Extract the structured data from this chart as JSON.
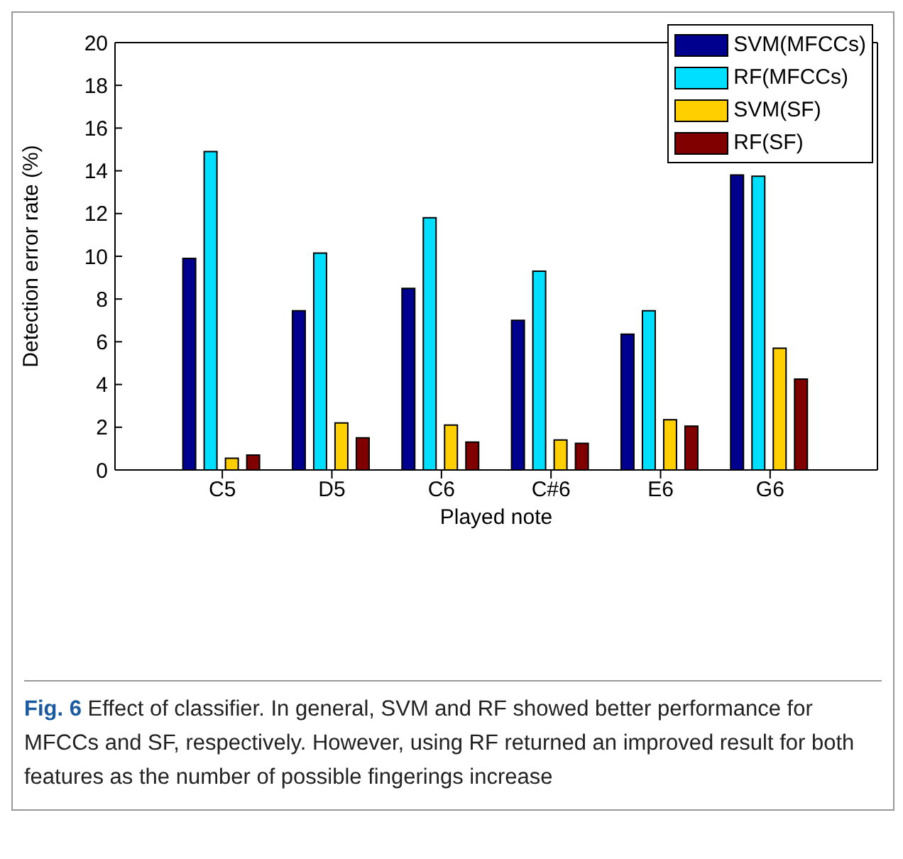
{
  "chart_data": {
    "type": "bar",
    "xlabel": "Played note",
    "ylabel": "Detection error rate (%)",
    "categories": [
      "C5",
      "D5",
      "C6",
      "C#6",
      "E6",
      "G6"
    ],
    "series": [
      {
        "name": "SVM(MFCCs)",
        "color": "#00008f",
        "values": [
          9.9,
          7.45,
          8.5,
          7.0,
          6.35,
          13.8
        ]
      },
      {
        "name": "RF(MFCCs)",
        "color": "#00dfff",
        "values": [
          14.9,
          10.15,
          11.8,
          9.3,
          7.45,
          13.75
        ]
      },
      {
        "name": "SVM(SF)",
        "color": "#ffcf00",
        "values": [
          0.55,
          2.2,
          2.1,
          1.4,
          2.35,
          5.7
        ]
      },
      {
        "name": "RF(SF)",
        "color": "#800000",
        "values": [
          0.7,
          1.5,
          1.3,
          1.25,
          2.05,
          4.25
        ]
      }
    ],
    "ylim": [
      0,
      20
    ],
    "yticks": [
      0,
      2,
      4,
      6,
      8,
      10,
      12,
      14,
      16,
      18,
      20
    ],
    "grid": false,
    "legend": "top right",
    "annotations": [
      "Fig. 6 Effect of classifier. In general, SVM and RF showed better performance for MFCCs and SF, respectively. However, using RF returned an improved result for both features as the number of possible fingerings increase"
    ]
  }
}
